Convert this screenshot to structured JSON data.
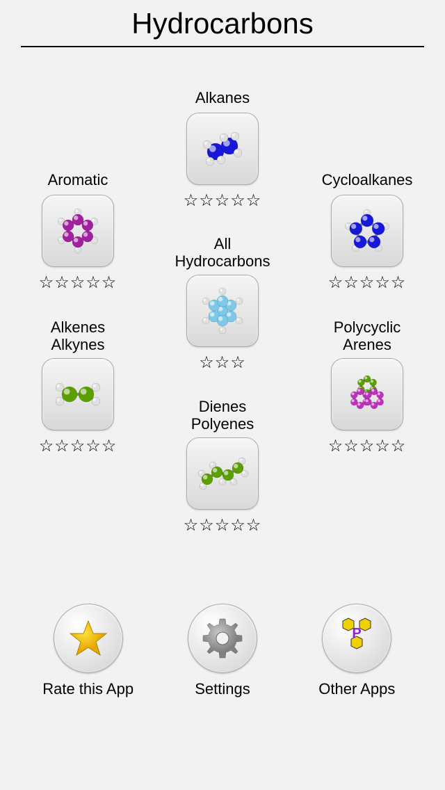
{
  "title": "Hydrocarbons",
  "categories": {
    "alkanes": {
      "label": "Alkanes",
      "stars": 5,
      "color": "#1818d8",
      "hcolor": "#e0e0e0"
    },
    "aromatic": {
      "label": "Aromatic",
      "stars": 5,
      "color": "#a020a0",
      "hcolor": "#e0e0e0"
    },
    "cycloalkanes": {
      "label": "Cycloalkanes",
      "stars": 5,
      "color": "#1818d8",
      "hcolor": "#e0e0e0"
    },
    "all": {
      "label": "All\nHydrocarbons",
      "stars": 3,
      "color": "#7ec8e8",
      "hcolor": "#e0e0e0"
    },
    "alkenes": {
      "label": "Alkenes\nAlkynes",
      "stars": 5,
      "color": "#5aa000",
      "hcolor": "#e0e0e0"
    },
    "polycyclic": {
      "label": "Polycyclic\nArenes",
      "stars": 5,
      "color": "#c030c0",
      "hcolor": "#e0e0e0"
    },
    "dienes": {
      "label": "Dienes\nPolyenes",
      "stars": 5,
      "color": "#5aa000",
      "hcolor": "#e0e0e0"
    }
  },
  "bottom": {
    "rate": {
      "label": "Rate this App"
    },
    "settings": {
      "label": "Settings"
    },
    "other": {
      "label": "Other Apps"
    }
  }
}
